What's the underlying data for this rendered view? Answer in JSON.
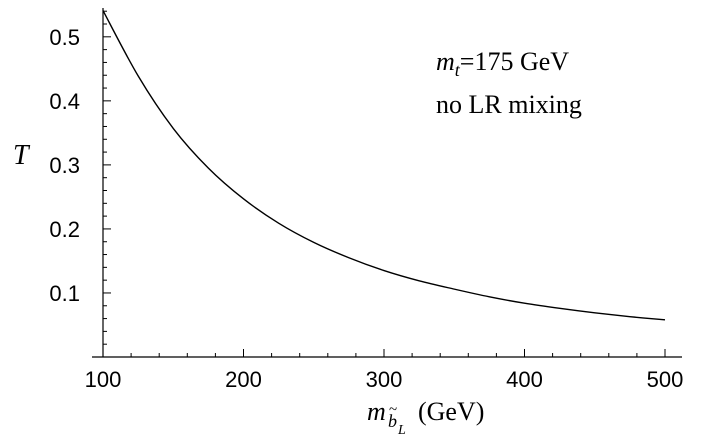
{
  "chart_data": {
    "type": "line",
    "title": "",
    "xlabel": {
      "base": "m",
      "subscript": "b",
      "subscript_accent": "~",
      "subsubscript": "L",
      "unit": "(GeV)"
    },
    "ylabel": "T",
    "xlim": [
      100,
      515
    ],
    "ylim": [
      0,
      0.545
    ],
    "x_ticks": [
      100,
      200,
      300,
      400,
      500
    ],
    "x_tick_labels": [
      "100",
      "200",
      "300",
      "400",
      "500"
    ],
    "y_ticks": [
      0.1,
      0.2,
      0.3,
      0.4,
      0.5
    ],
    "y_tick_labels": [
      "0.1",
      "0.2",
      "0.3",
      "0.4",
      "0.5"
    ],
    "grid": false,
    "annotations": {
      "mass_symbol": "m",
      "mass_subscript": "t",
      "mass_value": "=175 GeV",
      "mixing": "no LR mixing"
    },
    "series": [
      {
        "color": "#000000",
        "x": [
          100,
          125,
          150,
          175,
          200,
          225,
          250,
          275,
          300,
          325,
          350,
          375,
          400,
          425,
          450,
          475,
          500
        ],
        "y": [
          0.541,
          0.439,
          0.357,
          0.295,
          0.247,
          0.209,
          0.179,
          0.155,
          0.135,
          0.119,
          0.106,
          0.094,
          0.084,
          0.076,
          0.069,
          0.063,
          0.058
        ]
      }
    ]
  }
}
